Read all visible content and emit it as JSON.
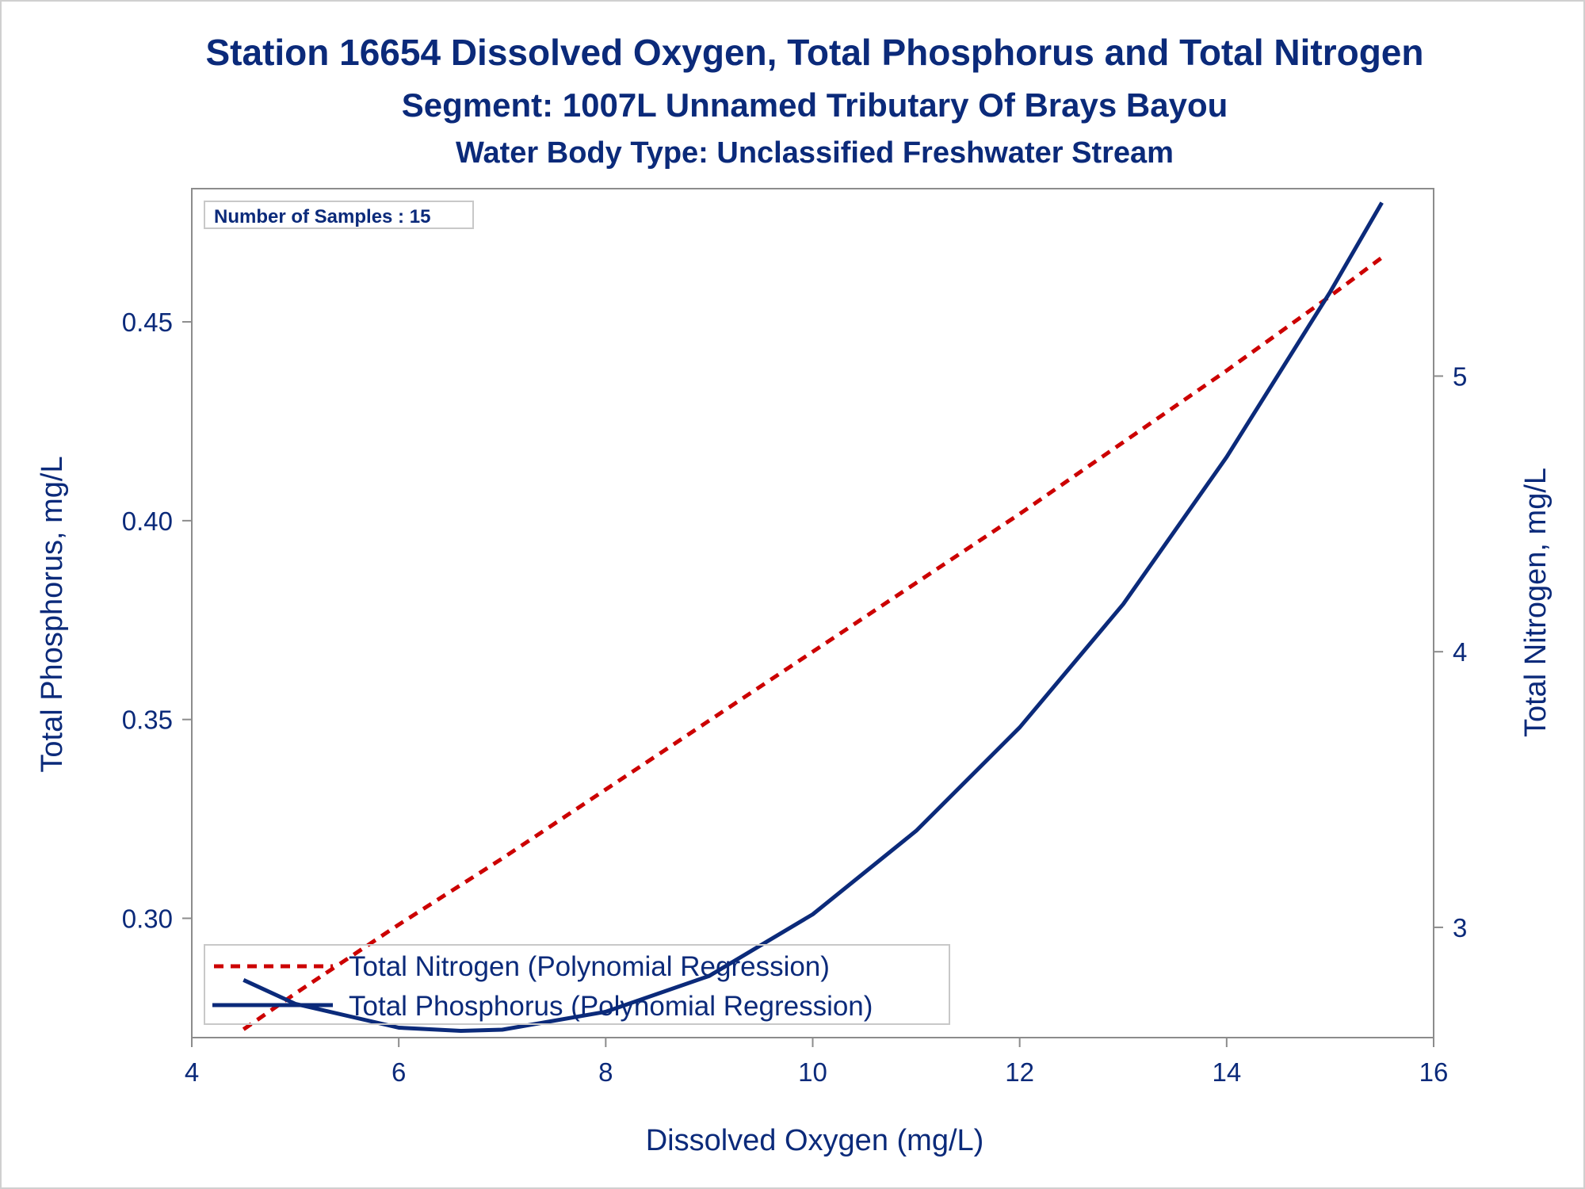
{
  "chart_data": {
    "type": "line",
    "title": "Station 16654  Dissolved Oxygen, Total Phosphorus and Total Nitrogen",
    "subtitle": "Segment: 1007L  Unnamed Tributary Of Brays Bayou",
    "subtitle2": "Water Body Type: Unclassified Freshwater Stream",
    "xlabel": "Dissolved Oxygen (mg/L)",
    "ylabel_left": "Total Phosphorus, mg/L",
    "ylabel_right": "Total Nitrogen, mg/L",
    "inset_text": "Number of Samples : 15",
    "xlim": [
      4,
      16
    ],
    "ylim_left": [
      0.27,
      0.4835
    ],
    "ylim_right": [
      2.6,
      5.68
    ],
    "x_ticks": [
      "4",
      "6",
      "8",
      "10",
      "12",
      "14",
      "16"
    ],
    "x_tick_values": [
      4,
      6,
      8,
      10,
      12,
      14,
      16
    ],
    "y_left_ticks": [
      "0.30",
      "0.35",
      "0.40",
      "0.45"
    ],
    "y_left_tick_values": [
      0.3,
      0.35,
      0.4,
      0.45
    ],
    "y_right_ticks": [
      "3",
      "4",
      "5"
    ],
    "y_right_tick_values": [
      3,
      4,
      5
    ],
    "legend_position": "bottom-left",
    "series": [
      {
        "name": "Total Nitrogen (Polynomial Regression)",
        "axis": "right",
        "color": "#cc0000",
        "style": "dashed",
        "x": [
          4.5,
          5.0,
          6.0,
          7.0,
          8.0,
          9.0,
          10.0,
          11.0,
          12.0,
          13.0,
          14.0,
          15.0,
          15.5
        ],
        "y": [
          2.63,
          2.76,
          3.01,
          3.25,
          3.5,
          3.75,
          4.0,
          4.25,
          4.5,
          4.76,
          5.02,
          5.29,
          5.43
        ]
      },
      {
        "name": "Total Phosphorus (Polynomial Regression)",
        "axis": "left",
        "color": "#0b2a7a",
        "style": "solid",
        "x": [
          4.5,
          5.0,
          6.0,
          6.6,
          7.0,
          8.0,
          9.0,
          10.0,
          11.0,
          12.0,
          13.0,
          14.0,
          15.0,
          15.5
        ],
        "y": [
          0.2845,
          0.2785,
          0.2725,
          0.2717,
          0.272,
          0.2765,
          0.2855,
          0.301,
          0.322,
          0.348,
          0.379,
          0.416,
          0.4575,
          0.48
        ]
      }
    ]
  },
  "colors": {
    "text": "#0b2a7a",
    "nitrogen": "#cc0000",
    "phosphorus": "#0b2a7a",
    "axis": "#8c8c8c"
  }
}
